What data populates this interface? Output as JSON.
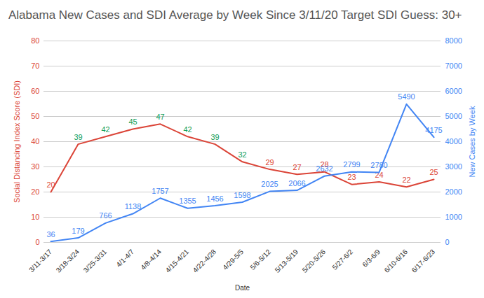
{
  "chart_data": {
    "type": "line",
    "title": "Alabama New Cases and SDI Average by Week Since 3/11/20 Target SDI Guess: 30+",
    "x_label": "Date",
    "y_label": "Social Distancing Index Score (SDI)",
    "y2_label": "New Cases by Week",
    "categories": [
      "3/11-3/17",
      "3/18-3/24",
      "3/25-3/31",
      "4/1-4/7",
      "4/8-4/14",
      "4/15-4/21",
      "4/22-4/28",
      "4/29-5/5",
      "5/6-5/12",
      "5/13-5/19",
      "5/20-5/26",
      "5/27-6/2",
      "6/3-6/9",
      "6/10-6/16",
      "6/17-6/23"
    ],
    "series": [
      {
        "color": "#db4437",
        "colors": [
          "#db4437",
          "#0f9d58",
          "#0f9d58",
          "#0f9d58",
          "#0f9d58",
          "#0f9d58",
          "#0f9d58",
          "#0f9d58",
          "#db4437",
          "#db4437",
          "#db4437",
          "#db4437",
          "#db4437",
          "#db4437",
          "#db4437"
        ],
        "values": [
          20,
          39,
          42,
          45,
          47,
          42,
          39,
          32,
          29,
          27,
          28,
          23,
          24,
          22,
          25
        ]
      },
      {
        "color": "#4285f4",
        "axis": "y2",
        "values": [
          36,
          179,
          766,
          1138,
          1757,
          1355,
          1456,
          1598,
          2025,
          2066,
          2632,
          2799,
          2780,
          5490,
          4175
        ]
      }
    ],
    "ylim": [
      0,
      80
    ],
    "yticks": [
      0,
      10,
      20,
      30,
      40,
      50,
      60,
      70,
      80
    ],
    "y2lim": [
      0,
      8000
    ],
    "y2ticks": [
      0,
      1000,
      2000,
      3000,
      4000,
      5000,
      6000,
      7000,
      8000
    ],
    "grid": true,
    "data_labels": true
  }
}
